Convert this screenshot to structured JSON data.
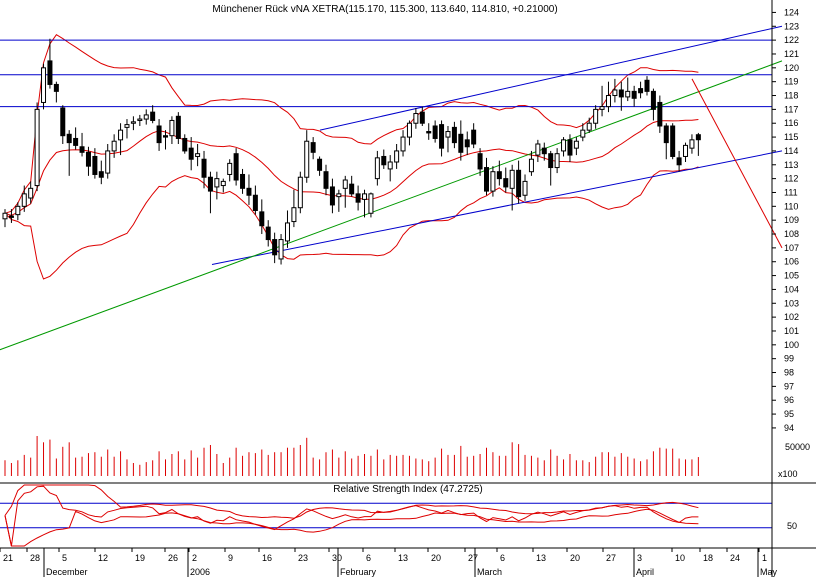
{
  "chart_data": {
    "type": "candlestick",
    "title": "Münchener Rück vNA XETRA(115.170, 115.300, 113.640, 114.810, +0.21000)",
    "price_axis": {
      "range": [
        93.5,
        124.5
      ],
      "ticks": [
        124,
        123,
        122,
        121,
        120,
        119,
        118,
        117,
        116,
        115,
        114,
        113,
        112,
        111,
        110,
        109,
        108,
        107,
        106,
        105,
        104,
        103,
        102,
        101,
        100,
        99,
        98,
        97,
        96,
        95,
        94
      ]
    },
    "volume_axis": {
      "label": "50000",
      "multiplier": "x100"
    },
    "rsi": {
      "title": "Relative Strength Index (47.2725)",
      "label": "50",
      "range": [
        0,
        100
      ],
      "levels": [
        70,
        30
      ]
    },
    "x_axis": {
      "day_ticks": [
        "21",
        "28",
        "5",
        "12",
        "19",
        "26",
        "2",
        "9",
        "16",
        "23",
        "30",
        "6",
        "13",
        "20",
        "27",
        "6",
        "13",
        "20",
        "27",
        "3",
        "10",
        "18",
        "24",
        "1"
      ],
      "month_labels": [
        "December",
        "2006",
        "February",
        "March",
        "April",
        "May"
      ]
    },
    "horizontal_lines": [
      122,
      119.5,
      117.2
    ],
    "trend_lines": [
      {
        "name": "blue-upper-channel",
        "color": "#0000cc",
        "from": [
          26.5,
          115.5
        ],
        "to": [
          65,
          123
        ]
      },
      {
        "name": "blue-lower-channel",
        "color": "#0000cc",
        "from": [
          17.5,
          105.8
        ],
        "to": [
          65,
          114
        ]
      },
      {
        "name": "green-support",
        "color": "#009900",
        "from": [
          -10,
          96.5
        ],
        "to": [
          65,
          120.5
        ]
      },
      {
        "name": "red-downtrend",
        "color": "#dd0000",
        "from": [
          57.5,
          119.2
        ],
        "to": [
          65,
          107
        ]
      }
    ],
    "candles": [
      {
        "i": 0,
        "o": 109.1,
        "h": 109.8,
        "l": 108.5,
        "c": 109.5
      },
      {
        "i": 1,
        "o": 109.3,
        "h": 109.8,
        "l": 108.8,
        "c": 109.2
      },
      {
        "i": 2,
        "o": 109.4,
        "h": 110.3,
        "l": 109.0,
        "c": 110.0
      },
      {
        "i": 3,
        "o": 110.0,
        "h": 111.5,
        "l": 109.6,
        "c": 110.9
      },
      {
        "i": 4,
        "o": 110.6,
        "h": 111.8,
        "l": 110.2,
        "c": 111.3
      },
      {
        "i": 5,
        "o": 111.5,
        "h": 117.5,
        "l": 111.1,
        "c": 117.0
      },
      {
        "i": 6,
        "o": 117.5,
        "h": 120.3,
        "l": 117.0,
        "c": 120.0
      },
      {
        "i": 7,
        "o": 120.5,
        "h": 122.1,
        "l": 118.5,
        "c": 118.8
      },
      {
        "i": 8,
        "o": 118.8,
        "h": 119.0,
        "l": 117.5,
        "c": 118.3
      },
      {
        "i": 9,
        "o": 117.1,
        "h": 117.3,
        "l": 114.5,
        "c": 115.1
      },
      {
        "i": 10,
        "o": 115.2,
        "h": 115.5,
        "l": 112.2,
        "c": 114.6
      },
      {
        "i": 11,
        "o": 114.9,
        "h": 115.7,
        "l": 114.1,
        "c": 114.4
      },
      {
        "i": 12,
        "o": 114.3,
        "h": 115.3,
        "l": 113.6,
        "c": 113.9
      },
      {
        "i": 13,
        "o": 113.9,
        "h": 114.3,
        "l": 112.2,
        "c": 112.9
      },
      {
        "i": 14,
        "o": 113.6,
        "h": 114.2,
        "l": 112.0,
        "c": 112.3
      },
      {
        "i": 15,
        "o": 112.5,
        "h": 113.3,
        "l": 111.6,
        "c": 112.1
      },
      {
        "i": 16,
        "o": 112.4,
        "h": 114.5,
        "l": 112.0,
        "c": 114.0
      },
      {
        "i": 17,
        "o": 114.0,
        "h": 115.2,
        "l": 113.5,
        "c": 114.7
      },
      {
        "i": 18,
        "o": 114.8,
        "h": 116.0,
        "l": 113.7,
        "c": 115.5
      },
      {
        "i": 19,
        "o": 115.7,
        "h": 116.3,
        "l": 114.9,
        "c": 115.9
      },
      {
        "i": 20,
        "o": 116.0,
        "h": 116.5,
        "l": 115.5,
        "c": 116.1
      },
      {
        "i": 21,
        "o": 116.2,
        "h": 116.6,
        "l": 115.8,
        "c": 116.3
      },
      {
        "i": 22,
        "o": 116.3,
        "h": 117.0,
        "l": 115.9,
        "c": 116.6
      },
      {
        "i": 23,
        "o": 116.8,
        "h": 117.3,
        "l": 116.0,
        "c": 116.2
      },
      {
        "i": 24,
        "o": 115.8,
        "h": 116.3,
        "l": 114.0,
        "c": 114.6
      },
      {
        "i": 25,
        "o": 115.1,
        "h": 115.5,
        "l": 114.1,
        "c": 115.0
      },
      {
        "i": 26,
        "o": 115.1,
        "h": 116.5,
        "l": 114.5,
        "c": 116.2
      },
      {
        "i": 27,
        "o": 116.5,
        "h": 116.8,
        "l": 114.5,
        "c": 114.9
      },
      {
        "i": 28,
        "o": 114.9,
        "h": 115.2,
        "l": 113.8,
        "c": 114.0
      },
      {
        "i": 29,
        "o": 114.2,
        "h": 115.0,
        "l": 112.6,
        "c": 113.4
      },
      {
        "i": 30,
        "o": 113.6,
        "h": 114.5,
        "l": 112.9,
        "c": 113.8
      },
      {
        "i": 31,
        "o": 113.4,
        "h": 114.0,
        "l": 111.3,
        "c": 112.1
      },
      {
        "i": 32,
        "o": 112.1,
        "h": 112.5,
        "l": 109.5,
        "c": 111.1
      },
      {
        "i": 33,
        "o": 111.4,
        "h": 112.5,
        "l": 110.5,
        "c": 112.0
      },
      {
        "i": 34,
        "o": 111.5,
        "h": 112.0,
        "l": 111.0,
        "c": 111.8
      },
      {
        "i": 35,
        "o": 112.3,
        "h": 113.4,
        "l": 111.8,
        "c": 113.1
      },
      {
        "i": 36,
        "o": 113.8,
        "h": 114.2,
        "l": 111.5,
        "c": 111.9
      },
      {
        "i": 37,
        "o": 112.3,
        "h": 112.7,
        "l": 110.9,
        "c": 111.3
      },
      {
        "i": 38,
        "o": 111.3,
        "h": 112.3,
        "l": 110.1,
        "c": 110.8
      },
      {
        "i": 39,
        "o": 110.8,
        "h": 111.5,
        "l": 109.4,
        "c": 109.7
      },
      {
        "i": 40,
        "o": 109.6,
        "h": 110.5,
        "l": 108.0,
        "c": 108.6
      },
      {
        "i": 41,
        "o": 108.5,
        "h": 109.0,
        "l": 107.1,
        "c": 107.6
      },
      {
        "i": 42,
        "o": 107.6,
        "h": 108.1,
        "l": 105.9,
        "c": 106.5
      },
      {
        "i": 43,
        "o": 106.2,
        "h": 108.0,
        "l": 105.8,
        "c": 107.6
      },
      {
        "i": 44,
        "o": 107.5,
        "h": 109.7,
        "l": 107.0,
        "c": 108.8
      },
      {
        "i": 45,
        "o": 108.9,
        "h": 111.2,
        "l": 108.5,
        "c": 109.9
      },
      {
        "i": 46,
        "o": 109.9,
        "h": 112.5,
        "l": 109.5,
        "c": 112.1
      },
      {
        "i": 47,
        "o": 112.1,
        "h": 115.5,
        "l": 111.7,
        "c": 114.7
      },
      {
        "i": 48,
        "o": 114.6,
        "h": 115.0,
        "l": 113.4,
        "c": 113.9
      },
      {
        "i": 49,
        "o": 113.4,
        "h": 113.6,
        "l": 112.2,
        "c": 112.6
      },
      {
        "i": 50,
        "o": 112.5,
        "h": 113.0,
        "l": 110.8,
        "c": 111.3
      },
      {
        "i": 51,
        "o": 111.4,
        "h": 112.0,
        "l": 109.5,
        "c": 110.1
      },
      {
        "i": 52,
        "o": 110.7,
        "h": 111.2,
        "l": 109.6,
        "c": 110.9
      },
      {
        "i": 53,
        "o": 111.3,
        "h": 112.2,
        "l": 109.9,
        "c": 111.9
      },
      {
        "i": 54,
        "o": 111.6,
        "h": 112.2,
        "l": 110.7,
        "c": 110.9
      },
      {
        "i": 55,
        "o": 110.9,
        "h": 111.5,
        "l": 109.7,
        "c": 110.3
      },
      {
        "i": 56,
        "o": 110.5,
        "h": 111.2,
        "l": 109.2,
        "c": 110.9
      },
      {
        "i": 57,
        "o": 109.5,
        "h": 111.0,
        "l": 109.2,
        "c": 110.9
      },
      {
        "i": 58,
        "o": 112.0,
        "h": 114.0,
        "l": 111.5,
        "c": 113.5
      },
      {
        "i": 59,
        "o": 113.6,
        "h": 114.1,
        "l": 112.7,
        "c": 113.0
      },
      {
        "i": 60,
        "o": 112.7,
        "h": 113.7,
        "l": 111.8,
        "c": 113.2
      },
      {
        "i": 61,
        "o": 113.2,
        "h": 114.5,
        "l": 112.7,
        "c": 114.0
      },
      {
        "i": 62,
        "o": 114.0,
        "h": 115.5,
        "l": 113.6,
        "c": 115.0
      },
      {
        "i": 63,
        "o": 115.0,
        "h": 116.2,
        "l": 114.4,
        "c": 116.0
      },
      {
        "i": 64,
        "o": 116.0,
        "h": 117.1,
        "l": 115.6,
        "c": 116.7
      },
      {
        "i": 65,
        "o": 116.8,
        "h": 117.2,
        "l": 115.8,
        "c": 116.0
      },
      {
        "i": 66,
        "o": 115.4,
        "h": 116.0,
        "l": 114.8,
        "c": 115.3
      },
      {
        "i": 67,
        "o": 115.8,
        "h": 116.2,
        "l": 114.6,
        "c": 114.9
      },
      {
        "i": 68,
        "o": 115.9,
        "h": 116.2,
        "l": 113.6,
        "c": 114.2
      },
      {
        "i": 69,
        "o": 115.0,
        "h": 115.8,
        "l": 113.9,
        "c": 115.4
      },
      {
        "i": 70,
        "o": 115.7,
        "h": 116.1,
        "l": 114.2,
        "c": 114.6
      },
      {
        "i": 71,
        "o": 115.2,
        "h": 116.2,
        "l": 113.3,
        "c": 113.9
      },
      {
        "i": 72,
        "o": 114.8,
        "h": 115.4,
        "l": 113.7,
        "c": 114.3
      },
      {
        "i": 73,
        "o": 115.5,
        "h": 116.0,
        "l": 114.2,
        "c": 114.5
      },
      {
        "i": 74,
        "o": 113.8,
        "h": 114.2,
        "l": 112.2,
        "c": 112.7
      },
      {
        "i": 75,
        "o": 112.8,
        "h": 113.5,
        "l": 110.8,
        "c": 111.1
      },
      {
        "i": 76,
        "o": 111.1,
        "h": 112.9,
        "l": 110.7,
        "c": 112.5
      },
      {
        "i": 77,
        "o": 112.5,
        "h": 113.3,
        "l": 111.5,
        "c": 112.0
      },
      {
        "i": 78,
        "o": 112.0,
        "h": 112.8,
        "l": 111.0,
        "c": 111.4
      },
      {
        "i": 79,
        "o": 111.3,
        "h": 113.0,
        "l": 109.7,
        "c": 112.6
      },
      {
        "i": 80,
        "o": 112.6,
        "h": 113.3,
        "l": 110.2,
        "c": 110.7
      },
      {
        "i": 81,
        "o": 110.8,
        "h": 112.3,
        "l": 110.4,
        "c": 111.8
      },
      {
        "i": 82,
        "o": 112.5,
        "h": 114.0,
        "l": 112.2,
        "c": 113.4
      },
      {
        "i": 83,
        "o": 113.7,
        "h": 114.8,
        "l": 113.2,
        "c": 114.5
      },
      {
        "i": 84,
        "o": 114.2,
        "h": 114.6,
        "l": 113.3,
        "c": 113.8
      },
      {
        "i": 85,
        "o": 113.8,
        "h": 114.0,
        "l": 111.5,
        "c": 112.8
      },
      {
        "i": 86,
        "o": 112.8,
        "h": 114.2,
        "l": 112.4,
        "c": 113.8
      },
      {
        "i": 87,
        "o": 114.0,
        "h": 115.0,
        "l": 113.6,
        "c": 114.8
      },
      {
        "i": 88,
        "o": 114.8,
        "h": 115.2,
        "l": 113.2,
        "c": 113.7
      },
      {
        "i": 89,
        "o": 114.2,
        "h": 115.0,
        "l": 113.7,
        "c": 114.7
      },
      {
        "i": 90,
        "o": 115.0,
        "h": 116.0,
        "l": 114.7,
        "c": 115.5
      },
      {
        "i": 91,
        "o": 115.5,
        "h": 116.4,
        "l": 115.3,
        "c": 116.0
      },
      {
        "i": 92,
        "o": 116.0,
        "h": 117.3,
        "l": 115.6,
        "c": 117.0
      },
      {
        "i": 93,
        "o": 117.0,
        "h": 118.7,
        "l": 116.5,
        "c": 117.2
      },
      {
        "i": 94,
        "o": 117.2,
        "h": 119.0,
        "l": 116.8,
        "c": 118.0
      },
      {
        "i": 95,
        "o": 118.0,
        "h": 119.2,
        "l": 117.5,
        "c": 118.4
      },
      {
        "i": 96,
        "o": 118.4,
        "h": 119.0,
        "l": 116.9,
        "c": 117.9
      },
      {
        "i": 97,
        "o": 117.9,
        "h": 119.3,
        "l": 117.6,
        "c": 118.3
      },
      {
        "i": 98,
        "o": 118.3,
        "h": 118.7,
        "l": 117.2,
        "c": 117.8
      },
      {
        "i": 99,
        "o": 118.5,
        "h": 119.0,
        "l": 117.8,
        "c": 118.2
      },
      {
        "i": 100,
        "o": 119.1,
        "h": 119.4,
        "l": 118.0,
        "c": 118.3
      },
      {
        "i": 101,
        "o": 118.3,
        "h": 118.5,
        "l": 116.2,
        "c": 117.0
      },
      {
        "i": 102,
        "o": 117.5,
        "h": 118.0,
        "l": 115.3,
        "c": 115.8
      },
      {
        "i": 103,
        "o": 115.8,
        "h": 116.0,
        "l": 113.4,
        "c": 114.6
      },
      {
        "i": 104,
        "o": 115.8,
        "h": 116.0,
        "l": 113.4,
        "c": 113.6
      },
      {
        "i": 105,
        "o": 113.5,
        "h": 114.0,
        "l": 112.5,
        "c": 113.0
      },
      {
        "i": 106,
        "o": 113.6,
        "h": 114.6,
        "l": 113.2,
        "c": 114.4
      },
      {
        "i": 107,
        "o": 114.2,
        "h": 115.2,
        "l": 113.8,
        "c": 114.8
      },
      {
        "i": 108,
        "o": 115.17,
        "h": 115.3,
        "l": 113.64,
        "c": 114.81
      }
    ]
  }
}
